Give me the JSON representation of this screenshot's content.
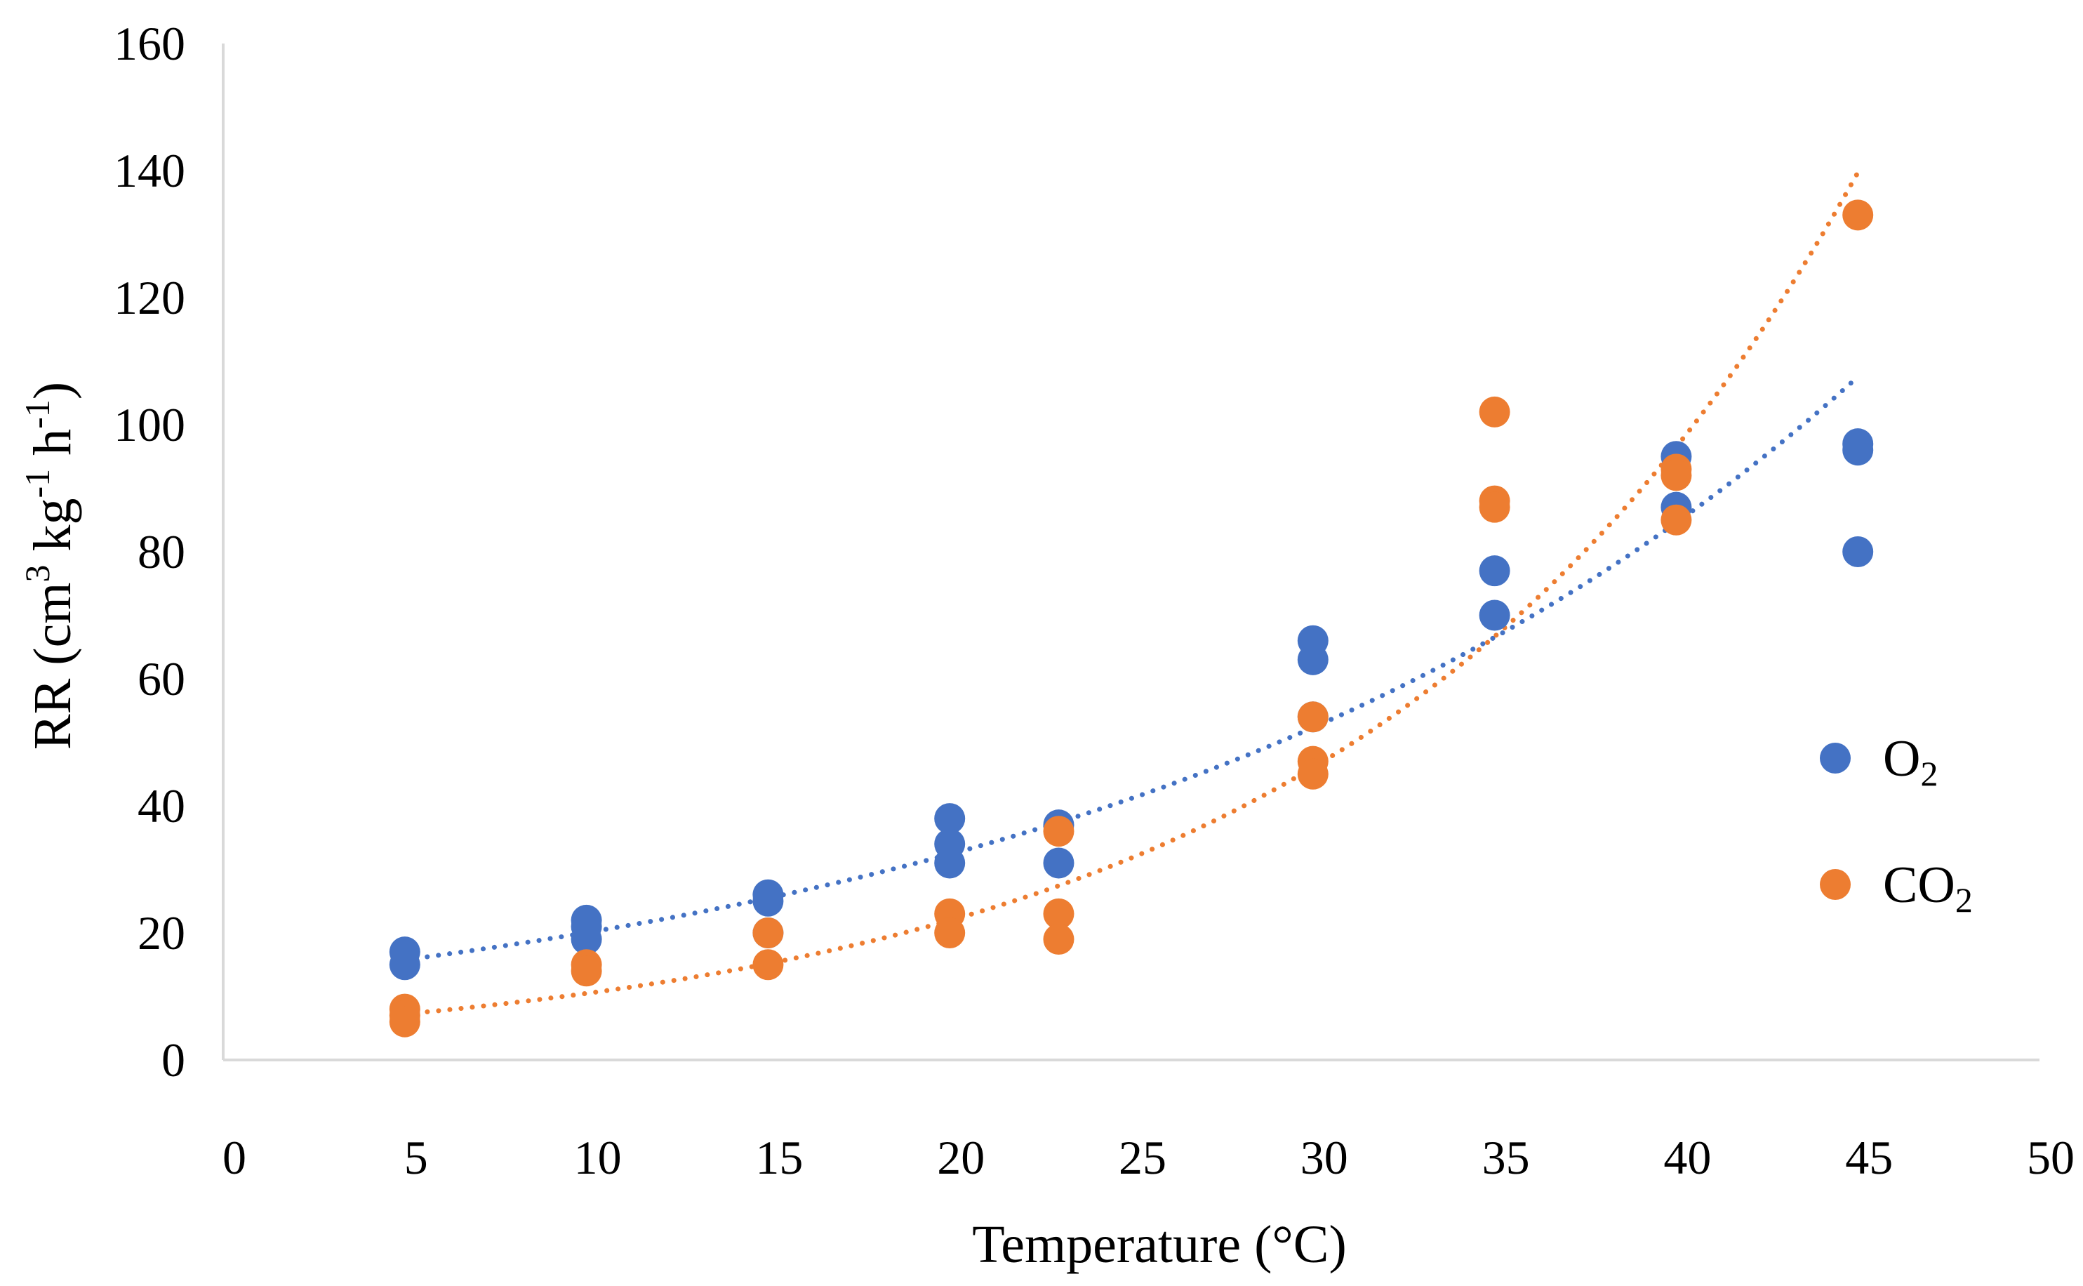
{
  "chart_data": {
    "type": "scatter",
    "title": "",
    "xlabel": "Temperature (°C)",
    "ylabel": {
      "prefix": "RR (cm",
      "sup1": "3",
      "mid1": " kg",
      "sup2": "-1",
      "mid2": " h",
      "sup3": "-1",
      "suffix": ")"
    },
    "xlim": [
      0,
      50
    ],
    "ylim": [
      0,
      160
    ],
    "xticks": [
      0,
      5,
      10,
      15,
      20,
      25,
      30,
      35,
      40,
      45,
      50
    ],
    "yticks": [
      0,
      20,
      40,
      60,
      80,
      100,
      120,
      140,
      160
    ],
    "grid": false,
    "legend_position": "right",
    "trendline": "exponential, dotted",
    "series": [
      {
        "name": "O₂",
        "legend_base": "O",
        "legend_sub": "2",
        "color": "#4472C4",
        "points": [
          [
            5,
            17
          ],
          [
            5,
            15
          ],
          [
            10,
            22
          ],
          [
            10,
            21
          ],
          [
            10,
            19
          ],
          [
            15,
            26
          ],
          [
            15,
            25
          ],
          [
            15,
            20
          ],
          [
            20,
            38
          ],
          [
            20,
            34
          ],
          [
            20,
            31
          ],
          [
            23,
            37
          ],
          [
            23,
            31
          ],
          [
            30,
            66
          ],
          [
            30,
            63
          ],
          [
            30,
            54
          ],
          [
            35,
            77
          ],
          [
            35,
            70
          ],
          [
            40,
            95
          ],
          [
            40,
            87
          ],
          [
            45,
            97
          ],
          [
            45,
            96
          ],
          [
            45,
            80
          ]
        ],
        "trend": {
          "a": 12.4,
          "b": 0.048,
          "x_range": [
            5,
            45
          ]
        }
      },
      {
        "name": "CO₂",
        "legend_base": "CO",
        "legend_sub": "2",
        "color": "#ED7D31",
        "points": [
          [
            5,
            8
          ],
          [
            5,
            7
          ],
          [
            5,
            6
          ],
          [
            10,
            15
          ],
          [
            10,
            14
          ],
          [
            15,
            20
          ],
          [
            15,
            15
          ],
          [
            20,
            23
          ],
          [
            20,
            20
          ],
          [
            23,
            36
          ],
          [
            23,
            23
          ],
          [
            23,
            19
          ],
          [
            30,
            54
          ],
          [
            30,
            47
          ],
          [
            30,
            45
          ],
          [
            35,
            102
          ],
          [
            35,
            88
          ],
          [
            35,
            87
          ],
          [
            40,
            93
          ],
          [
            40,
            92
          ],
          [
            40,
            85
          ],
          [
            45,
            133
          ]
        ],
        "trend": {
          "a": 5.0,
          "b": 0.074,
          "x_range": [
            5,
            45
          ]
        }
      }
    ]
  }
}
